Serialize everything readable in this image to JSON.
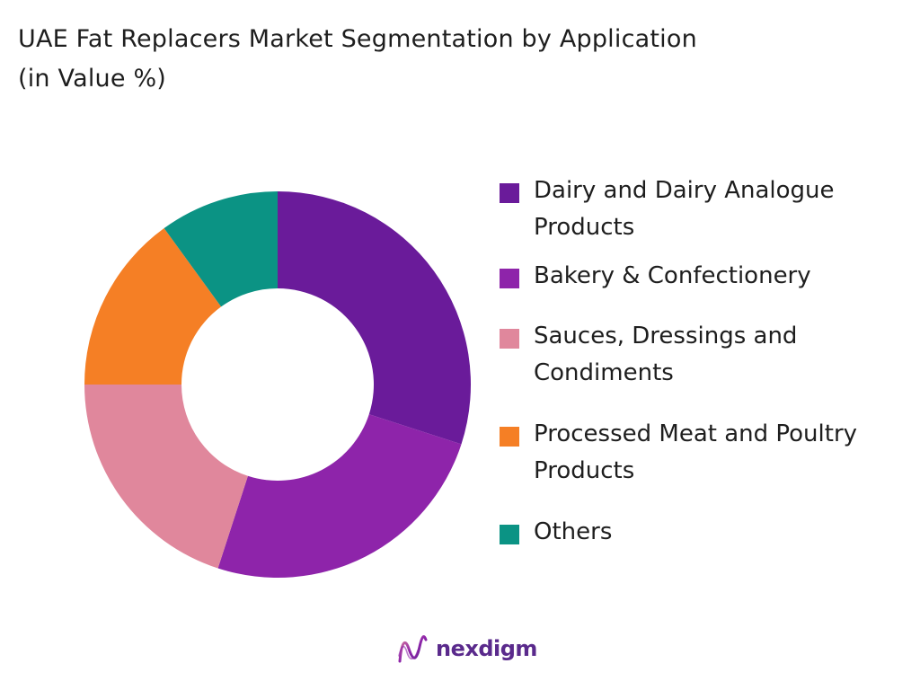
{
  "page": {
    "title": "UAE Fat Replacers Market Segmentation by Application\n(in Value %)",
    "brand": "nexdigm",
    "brand_icon": "nexdigm-wave-logo-icon"
  },
  "chart_data": {
    "type": "pie",
    "variant": "donut",
    "title": "UAE Fat Replacers Market Segmentation by Application\n(in Value %)",
    "legend_position": "right",
    "start_angle_deg": 0,
    "direction": "clockwise",
    "series": [
      {
        "name": "Dairy and Dairy Analogue\nProducts",
        "value": 30,
        "color": "#6a1b9a"
      },
      {
        "name": "Bakery & Confectionery",
        "value": 25,
        "color": "#8e24aa"
      },
      {
        "name": "Sauces, Dressings and\nCondiments",
        "value": 20,
        "color": "#e0879c"
      },
      {
        "name": "Processed Meat and Poultry\nProducts",
        "value": 15,
        "color": "#f57f25"
      },
      {
        "name": "Others",
        "value": 10,
        "color": "#0b9384"
      }
    ]
  }
}
